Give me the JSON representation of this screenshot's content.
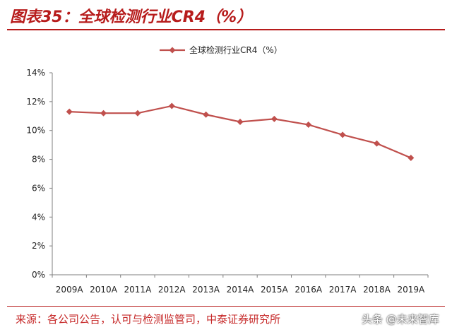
{
  "header": {
    "title": "图表35：全球检测行业CR4（%）"
  },
  "footer": {
    "source": "来源：各公司公告，认可与检测监管司，中泰证券研究所",
    "watermark": "头条 @未来智库"
  },
  "chart_data": {
    "type": "line",
    "categories": [
      "2009A",
      "2010A",
      "2011A",
      "2012A",
      "2013A",
      "2014A",
      "2015A",
      "2016A",
      "2017A",
      "2018A",
      "2019A"
    ],
    "series": [
      {
        "name": "全球检测行业CR4（%）",
        "values": [
          11.3,
          11.2,
          11.2,
          11.7,
          11.1,
          10.6,
          10.8,
          10.4,
          9.7,
          9.1,
          8.1
        ],
        "color": "#c0504d",
        "marker": "diamond"
      }
    ],
    "yticks": [
      "0%",
      "2%",
      "4%",
      "6%",
      "8%",
      "10%",
      "12%",
      "14%"
    ],
    "ylim": [
      0,
      14
    ],
    "grid": false,
    "legend_position": "top-center"
  }
}
